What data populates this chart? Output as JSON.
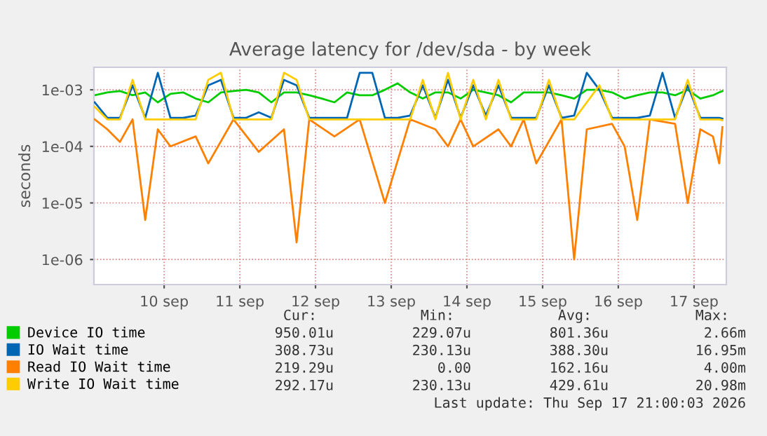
{
  "chart_data": {
    "type": "line",
    "title": "Average latency for /dev/sda - by week",
    "ylabel": "seconds",
    "x": [
      "2026-09-09T14:00",
      "2026-09-09T18:00",
      "2026-09-09T22:00",
      "2026-09-10T02:00",
      "2026-09-10T06:00",
      "2026-09-10T10:00",
      "2026-09-10T14:00",
      "2026-09-10T18:00",
      "2026-09-10T22:00",
      "2026-09-11T02:00",
      "2026-09-11T06:00",
      "2026-09-11T10:00",
      "2026-09-11T14:00",
      "2026-09-11T18:00",
      "2026-09-11T22:00",
      "2026-09-12T02:00",
      "2026-09-12T06:00",
      "2026-09-12T10:00",
      "2026-09-12T14:00",
      "2026-09-12T18:00",
      "2026-09-12T22:00",
      "2026-09-13T02:00",
      "2026-09-13T06:00",
      "2026-09-13T10:00",
      "2026-09-13T14:00",
      "2026-09-13T18:00",
      "2026-09-13T22:00",
      "2026-09-14T02:00",
      "2026-09-14T06:00",
      "2026-09-14T10:00",
      "2026-09-14T14:00",
      "2026-09-14T18:00",
      "2026-09-14T22:00",
      "2026-09-15T02:00",
      "2026-09-15T06:00",
      "2026-09-15T10:00",
      "2026-09-15T14:00",
      "2026-09-15T18:00",
      "2026-09-15T22:00",
      "2026-09-16T02:00",
      "2026-09-16T06:00",
      "2026-09-16T10:00",
      "2026-09-16T14:00",
      "2026-09-16T18:00",
      "2026-09-16T22:00",
      "2026-09-17T02:00",
      "2026-09-17T06:00",
      "2026-09-17T10:00",
      "2026-09-17T14:00",
      "2026-09-17T18:00",
      "2026-09-17T20:00",
      "2026-09-17T21:00"
    ],
    "series": [
      {
        "name": "Device IO time",
        "color": "#00cc00",
        "values": [
          0.0008,
          0.0009,
          0.00095,
          0.0008,
          0.0009,
          0.0006,
          0.00085,
          0.0009,
          0.0007,
          0.0006,
          0.0009,
          0.00095,
          0.001,
          0.0009,
          0.0006,
          0.0009,
          0.0009,
          0.0008,
          0.0007,
          0.0006,
          0.0009,
          0.0008,
          0.0008,
          0.001,
          0.0013,
          0.0009,
          0.0007,
          0.0009,
          0.0009,
          0.0007,
          0.001,
          0.0009,
          0.0008,
          0.0006,
          0.0009,
          0.0009,
          0.0009,
          0.0008,
          0.0007,
          0.001,
          0.001,
          0.0009,
          0.0007,
          0.0008,
          0.0009,
          0.0009,
          0.0008,
          0.001,
          0.0007,
          0.0008,
          0.0009,
          0.00095
        ]
      },
      {
        "name": "IO Wait time",
        "color": "#0066b3",
        "values": [
          0.0006,
          0.00032,
          0.00032,
          0.0012,
          0.00032,
          0.002,
          0.00032,
          0.00032,
          0.00035,
          0.0012,
          0.0015,
          0.00032,
          0.00032,
          0.0004,
          0.00032,
          0.0015,
          0.0012,
          0.00032,
          0.00032,
          0.00032,
          0.00032,
          0.002,
          0.002,
          0.00032,
          0.00032,
          0.00035,
          0.0012,
          0.00032,
          0.0015,
          0.00032,
          0.0012,
          0.00035,
          0.0012,
          0.00032,
          0.00032,
          0.00032,
          0.0012,
          0.00032,
          0.00035,
          0.002,
          0.001,
          0.00032,
          0.00032,
          0.00032,
          0.00035,
          0.002,
          0.00032,
          0.0012,
          0.00032,
          0.00032,
          0.00032,
          0.00031
        ]
      },
      {
        "name": "Read IO Wait time",
        "color": "#ff8000",
        "values": [
          0.0003,
          0.0002,
          0.00012,
          0.0003,
          5e-06,
          0.0002,
          0.0001,
          null,
          0.00015,
          5e-05,
          null,
          0.0003,
          null,
          8e-05,
          null,
          0.0002,
          2e-06,
          0.0003,
          null,
          0.00015,
          null,
          0.0003,
          null,
          1e-05,
          null,
          0.0003,
          null,
          0.0002,
          0.0001,
          0.0003,
          0.0001,
          null,
          0.0002,
          0.0001,
          0.0003,
          5e-05,
          null,
          0.0003,
          1e-06,
          0.0002,
          null,
          0.00025,
          0.0001,
          5e-06,
          0.0003,
          null,
          0.00025,
          1e-05,
          0.0002,
          0.00015,
          5e-05,
          0.00022
        ]
      },
      {
        "name": "Write IO Wait time",
        "color": "#ffcc00",
        "values": [
          0.0005,
          0.0003,
          0.0003,
          0.0015,
          0.0003,
          null,
          0.0003,
          0.0003,
          0.0003,
          0.0015,
          0.002,
          0.0003,
          0.0003,
          0.0003,
          0.0003,
          0.002,
          0.0015,
          0.0003,
          0.0003,
          0.0003,
          0.0003,
          null,
          null,
          0.0003,
          0.0003,
          0.0003,
          0.0015,
          0.0003,
          0.002,
          0.0003,
          0.0015,
          0.0003,
          0.0015,
          0.0003,
          0.0003,
          0.0003,
          0.0015,
          0.0003,
          0.0003,
          null,
          0.0012,
          0.0003,
          0.0003,
          0.0003,
          0.0003,
          null,
          0.0003,
          0.0015,
          0.0003,
          0.0003,
          0.0003,
          0.00029
        ]
      }
    ],
    "log": "y",
    "ylim": [
      3.6e-07,
      0.0025
    ],
    "yticks": [
      {
        "value": 0.001,
        "label": "1e-03"
      },
      {
        "value": 0.0001,
        "label": "1e-04"
      },
      {
        "value": 1e-05,
        "label": "1e-05"
      },
      {
        "value": 1e-06,
        "label": "1e-06"
      }
    ],
    "xlim": [
      "2026-09-09T13:45",
      "2026-09-17T22:15"
    ],
    "xticks": [
      {
        "value": "2026-09-10T12:00",
        "label": "10 sep"
      },
      {
        "value": "2026-09-11T12:00",
        "label": "11 sep"
      },
      {
        "value": "2026-09-12T12:00",
        "label": "12 sep"
      },
      {
        "value": "2026-09-13T12:00",
        "label": "13 sep"
      },
      {
        "value": "2026-09-14T12:00",
        "label": "14 sep"
      },
      {
        "value": "2026-09-15T12:00",
        "label": "15 sep"
      },
      {
        "value": "2026-09-16T12:00",
        "label": "16 sep"
      },
      {
        "value": "2026-09-17T12:00",
        "label": "17 sep"
      }
    ],
    "grid": true,
    "legend": "bottom",
    "marker": "none",
    "line_style": "solid",
    "annotations": [
      "Cur:",
      "Min:",
      "Avg:",
      "Max:",
      "950.01u",
      "229.07u",
      "801.36u",
      "2.66m",
      "308.73u",
      "230.13u",
      "388.30u",
      "16.95m",
      "219.29u",
      "0.00",
      "162.16u",
      "4.00m",
      "292.17u",
      "230.13u",
      "429.61u",
      "20.98m",
      "Last update: Thu Sep 17 21:00:03 2026"
    ]
  }
}
